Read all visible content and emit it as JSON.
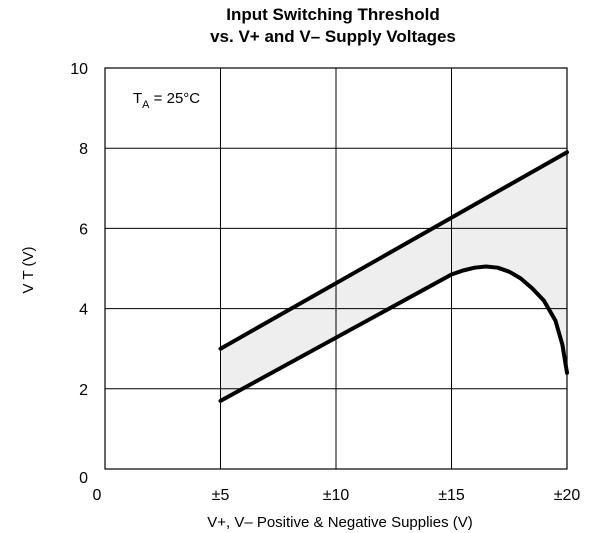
{
  "chart_data": {
    "type": "line",
    "title_line1": "Input Switching Threshold",
    "title_line2": "vs. V+ and V– Supply Voltages",
    "xlabel": "V+, V– Positive & Negative Supplies (V)",
    "ylabel": "V T (V)",
    "annotation": {
      "main": "T",
      "sub": "A",
      "rest": " = 25°C"
    },
    "xlim": [
      0,
      20
    ],
    "ylim": [
      0,
      10
    ],
    "x_ticks": [
      {
        "value": 0,
        "label": "0"
      },
      {
        "value": 5,
        "label": "±5"
      },
      {
        "value": 10,
        "label": "±10"
      },
      {
        "value": 15,
        "label": "±15"
      },
      {
        "value": 20,
        "label": "±20"
      }
    ],
    "y_ticks": [
      {
        "value": 0,
        "label": "0"
      },
      {
        "value": 2,
        "label": "2"
      },
      {
        "value": 4,
        "label": "4"
      },
      {
        "value": 6,
        "label": "6"
      },
      {
        "value": 8,
        "label": "8"
      },
      {
        "value": 10,
        "label": "10"
      }
    ],
    "grid": true,
    "series": [
      {
        "points": [
          [
            5,
            3.0
          ],
          [
            20,
            7.9
          ]
        ]
      },
      {
        "points": [
          [
            5,
            1.7
          ],
          [
            15,
            4.85
          ],
          [
            15.5,
            4.95
          ],
          [
            16,
            5.02
          ],
          [
            16.5,
            5.05
          ],
          [
            17,
            5.02
          ],
          [
            17.5,
            4.92
          ],
          [
            18,
            4.75
          ],
          [
            18.5,
            4.5
          ],
          [
            19,
            4.2
          ],
          [
            19.5,
            3.7
          ],
          [
            19.8,
            3.1
          ],
          [
            20,
            2.4
          ]
        ]
      }
    ],
    "shaded_region_color": "#eeeeee",
    "line_color": "#000000"
  }
}
